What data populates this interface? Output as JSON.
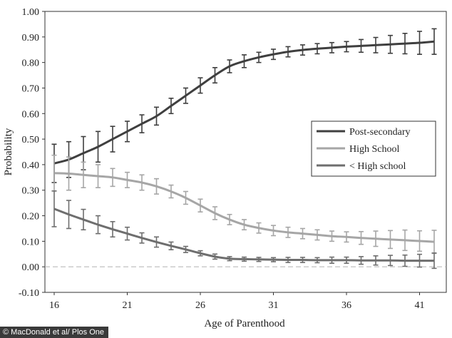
{
  "chart_data": {
    "type": "line",
    "title": "",
    "xlabel": "Age of Parenthood",
    "ylabel": "Probability",
    "xlim": [
      16,
      42
    ],
    "ylim": [
      -0.1,
      1.0
    ],
    "x_ticks": [
      "16",
      "21",
      "26",
      "31",
      "36",
      "41"
    ],
    "y_ticks": [
      "-0.10",
      "0.00",
      "0.10",
      "0.20",
      "0.30",
      "0.40",
      "0.50",
      "0.60",
      "0.70",
      "0.80",
      "0.90",
      "1.00"
    ],
    "grid": false,
    "legend_position": "right",
    "zero_reference_line": true,
    "x": [
      16,
      17,
      18,
      19,
      20,
      21,
      22,
      23,
      24,
      25,
      26,
      27,
      28,
      29,
      30,
      31,
      32,
      33,
      34,
      35,
      36,
      37,
      38,
      39,
      40,
      41,
      42
    ],
    "series": [
      {
        "name": "Post-secondary",
        "color": "#3f3f3f",
        "values": [
          0.405,
          0.42,
          0.445,
          0.47,
          0.5,
          0.53,
          0.56,
          0.59,
          0.63,
          0.67,
          0.71,
          0.75,
          0.785,
          0.805,
          0.82,
          0.832,
          0.842,
          0.849,
          0.854,
          0.858,
          0.862,
          0.865,
          0.868,
          0.871,
          0.874,
          0.877,
          0.882
        ],
        "error": [
          0.075,
          0.07,
          0.065,
          0.06,
          0.05,
          0.04,
          0.035,
          0.035,
          0.03,
          0.03,
          0.03,
          0.03,
          0.025,
          0.025,
          0.02,
          0.02,
          0.02,
          0.02,
          0.02,
          0.02,
          0.02,
          0.025,
          0.03,
          0.035,
          0.04,
          0.045,
          0.05
        ]
      },
      {
        "name": "High School",
        "color": "#a6a6a6",
        "values": [
          0.367,
          0.365,
          0.36,
          0.355,
          0.35,
          0.34,
          0.33,
          0.315,
          0.295,
          0.27,
          0.24,
          0.21,
          0.185,
          0.165,
          0.152,
          0.142,
          0.135,
          0.13,
          0.125,
          0.12,
          0.117,
          0.113,
          0.11,
          0.107,
          0.104,
          0.101,
          0.098
        ],
        "error": [
          0.07,
          0.065,
          0.05,
          0.045,
          0.035,
          0.03,
          0.03,
          0.03,
          0.025,
          0.025,
          0.025,
          0.025,
          0.02,
          0.02,
          0.02,
          0.02,
          0.02,
          0.02,
          0.02,
          0.02,
          0.02,
          0.025,
          0.03,
          0.035,
          0.04,
          0.04,
          0.045
        ]
      },
      {
        "name": "< High school",
        "color": "#6e6e6e",
        "values": [
          0.227,
          0.205,
          0.185,
          0.165,
          0.147,
          0.13,
          0.113,
          0.097,
          0.082,
          0.068,
          0.053,
          0.04,
          0.032,
          0.03,
          0.029,
          0.028,
          0.027,
          0.027,
          0.026,
          0.026,
          0.026,
          0.025,
          0.025,
          0.025,
          0.024,
          0.024,
          0.024
        ],
        "error": [
          0.07,
          0.055,
          0.04,
          0.035,
          0.03,
          0.025,
          0.02,
          0.02,
          0.015,
          0.012,
          0.01,
          0.01,
          0.008,
          0.008,
          0.008,
          0.008,
          0.01,
          0.01,
          0.01,
          0.012,
          0.012,
          0.015,
          0.018,
          0.02,
          0.022,
          0.025,
          0.03
        ]
      }
    ]
  },
  "credit": "© MacDonald et al/ Plos One"
}
